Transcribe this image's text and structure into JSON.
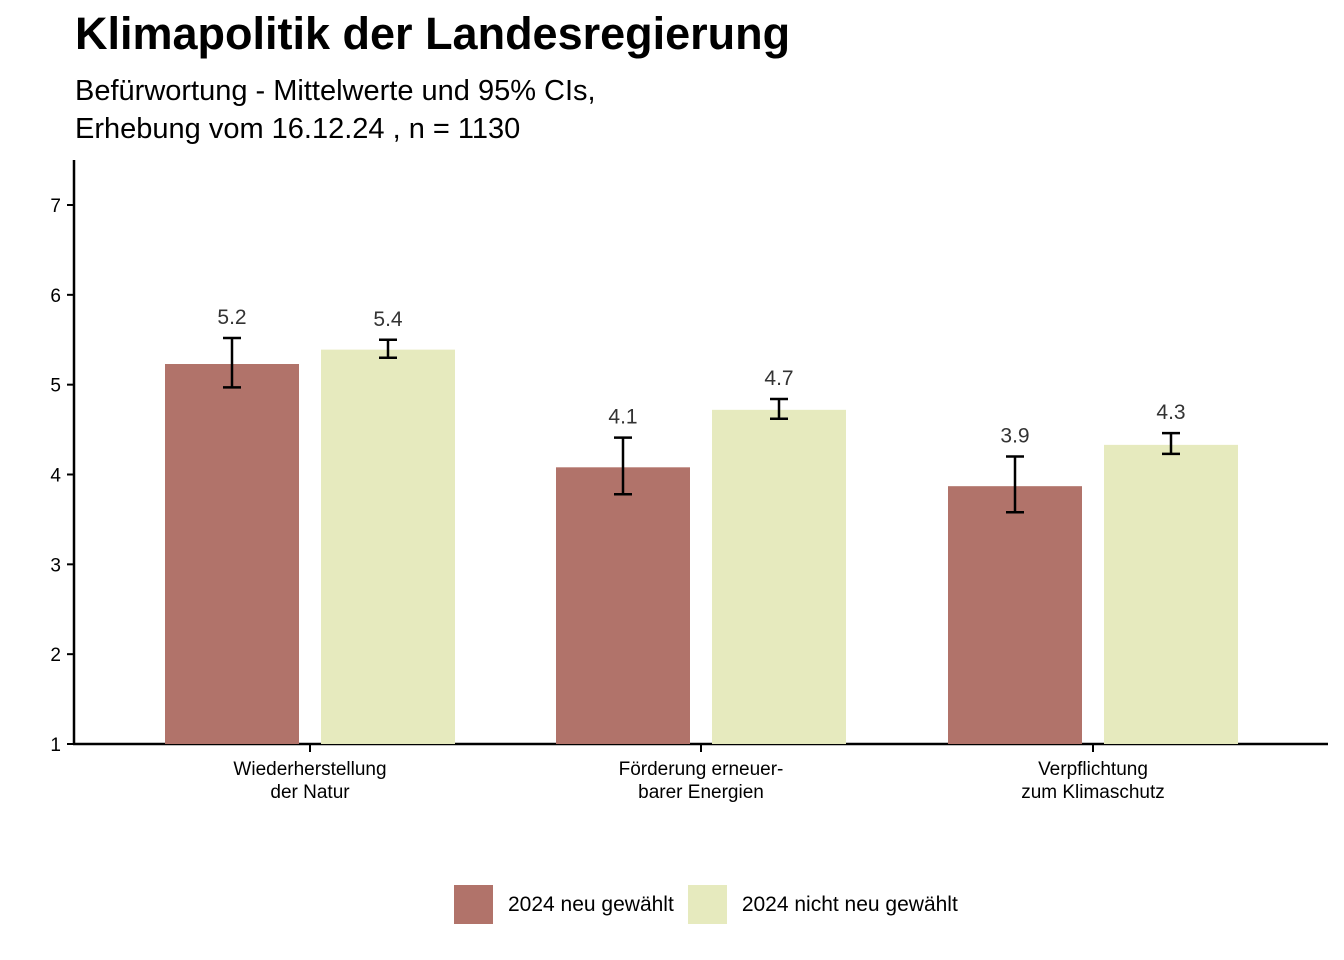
{
  "title": "Klimapolitik der Landesregierung",
  "subtitle_line1": "Befürwortung - Mittelwerte und 95% CIs,",
  "subtitle_line2": "Erhebung vom 16.12.24 , n = 1130",
  "chart_data": {
    "type": "bar",
    "title": "Klimapolitik der Landesregierung",
    "subtitle": "Befürwortung - Mittelwerte und 95% CIs, Erhebung vom 16.12.24 , n = 1130",
    "xlabel": "",
    "ylabel": "",
    "ylim": [
      1,
      7.5
    ],
    "yticks": [
      1,
      2,
      3,
      4,
      5,
      6,
      7
    ],
    "categories": [
      [
        "Wiederherstellung",
        "der Natur"
      ],
      [
        "Förderung erneuer-",
        "barer Energien"
      ],
      [
        "Verpflichtung",
        "zum Klimaschutz"
      ]
    ],
    "series": [
      {
        "name": "2024 neu gewählt",
        "color": "#b1736a",
        "values": [
          5.23,
          4.08,
          3.87
        ],
        "ci_low": [
          4.97,
          3.78,
          3.58
        ],
        "ci_high": [
          5.52,
          4.41,
          4.2
        ],
        "labels": [
          "5.2",
          "4.1",
          "3.9"
        ]
      },
      {
        "name": "2024 nicht neu gewählt",
        "color": "#e6eabe",
        "values": [
          5.39,
          4.72,
          4.33
        ],
        "ci_low": [
          5.3,
          4.62,
          4.23
        ],
        "ci_high": [
          5.5,
          4.84,
          4.46
        ],
        "labels": [
          "5.4",
          "4.7",
          "4.3"
        ]
      }
    ],
    "grid": false,
    "legend_position": "bottom"
  }
}
